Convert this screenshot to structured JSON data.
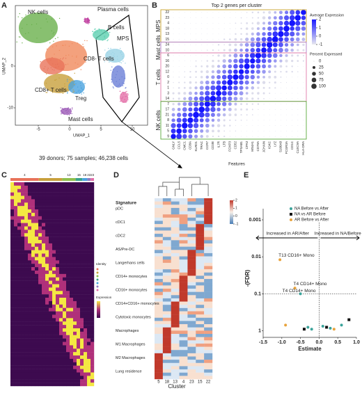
{
  "panel_a": {
    "letter": "A",
    "x_label": "UMAP_1",
    "y_label": "UMAP_2",
    "xticks": [
      -5,
      0,
      5,
      10
    ],
    "yticks": [
      0,
      -10
    ],
    "clusters": [
      "NK cells",
      "Plasma cells",
      "B cells",
      "MPS",
      "CD8- T cells",
      "CD8+ T cells",
      "Treg",
      "Mast cells"
    ],
    "caption": "39 donors; 75 samples; 46,238 cells"
  },
  "panel_b": {
    "letter": "B",
    "title": "Top 2 genes per cluster",
    "x_label": "Features",
    "groups": [
      "MPS",
      "Mast cells",
      "T cells",
      "NK cells"
    ],
    "rows": [
      "22",
      "23",
      "4",
      "18",
      "13",
      "15",
      "24",
      "10",
      "6",
      "16",
      "20",
      "12",
      "0",
      "2",
      "1",
      "3",
      "14",
      "7",
      "17",
      "21",
      "8",
      "11",
      "5",
      "9"
    ],
    "features": [
      "GNLY",
      "CCL5",
      "CMC1",
      "CD8A",
      "KLRD1",
      "TRAC",
      "CCR7",
      "CD3E",
      "IL7R",
      "LTB",
      "FOXP3",
      "CD52",
      "TPSAB1",
      "CPA3",
      "MS4A1",
      "CD79A",
      "JCHAIN",
      "IGKC",
      "LYZ",
      "S100A8",
      "FCGR3A",
      "CD1C",
      "CLEC9A",
      "HLA-DRA"
    ],
    "avg_title": "Average Expression",
    "avg_ticks": [
      2,
      1,
      0,
      -1
    ],
    "pct_title": "Percent Expressed",
    "pct_ticks": [
      0,
      25,
      50,
      75,
      100
    ]
  },
  "panel_c": {
    "letter": "C",
    "clusters": [
      "4",
      "5",
      "13",
      "15",
      "18",
      "22",
      "23"
    ],
    "identity_title": "Identity",
    "expression_title": "Expression"
  },
  "panel_d": {
    "letter": "D",
    "signatures": [
      "Signature",
      "pDC",
      "cDC1",
      "cDC2",
      "AS/Pre-DC",
      "Langerhans cells",
      "CD14+ monocytes",
      "CD16+ monocytes",
      "CD14+CD16+ monocytes",
      "Cytotoxic monocytes",
      "Macrophages",
      "M1 Macrophages",
      "M2 Macrophages",
      "Lung residence"
    ],
    "clusters": [
      "5",
      "18",
      "13",
      "4",
      "23",
      "15",
      "22"
    ],
    "x_label": "Cluster",
    "scale_ticks": [
      2,
      1,
      0,
      -1
    ]
  },
  "panel_e": {
    "letter": "E",
    "type": "scatter",
    "x_label": "Estimate",
    "y_label": "-(FDR)",
    "log_y": true,
    "xlim": [
      -1.5,
      1.0
    ],
    "xticks": [
      -1.5,
      {
        "value": -1.0,
        "label": "-1.0"
      },
      -0.5,
      {
        "value": 0.0,
        "label": "0.0"
      },
      0.5,
      {
        "value": 1.0,
        "label": "1.0"
      }
    ],
    "ylim": [
      1.5,
      0.0005
    ],
    "yticks": [
      0.001,
      0.01,
      0.1,
      1
    ],
    "left_arrow": "Increased in AR/After",
    "right_arrow": "Increased in NA/Before",
    "series": [
      {
        "name": "NA Before vs After",
        "color": "#3aa39a",
        "x": [
          -0.5,
          -0.3,
          -0.2,
          0.1,
          0.3,
          0.6
        ],
        "values": [
          0.1,
          0.8,
          0.9,
          0.75,
          0.85,
          0.7
        ]
      },
      {
        "name": "NA vs AR Before",
        "color": "#111111",
        "x": [
          -0.4,
          0.2,
          0.8
        ],
        "values": [
          0.9,
          0.8,
          0.5
        ]
      },
      {
        "name": "AR Before vs After",
        "color": "#e8a33c",
        "x": [
          -1.05,
          -0.65,
          -0.9,
          0.4
        ],
        "values": [
          0.012,
          0.07,
          0.7,
          0.9
        ]
      }
    ],
    "annotations": [
      {
        "text": "T13 CD16+ Mono",
        "series": 2,
        "point": 0
      },
      {
        "text": "T4 CD14+ Mono",
        "series": 2,
        "point": 1
      },
      {
        "text": "T4 CD14+ Mono",
        "series": 0,
        "point": 0
      }
    ]
  }
}
